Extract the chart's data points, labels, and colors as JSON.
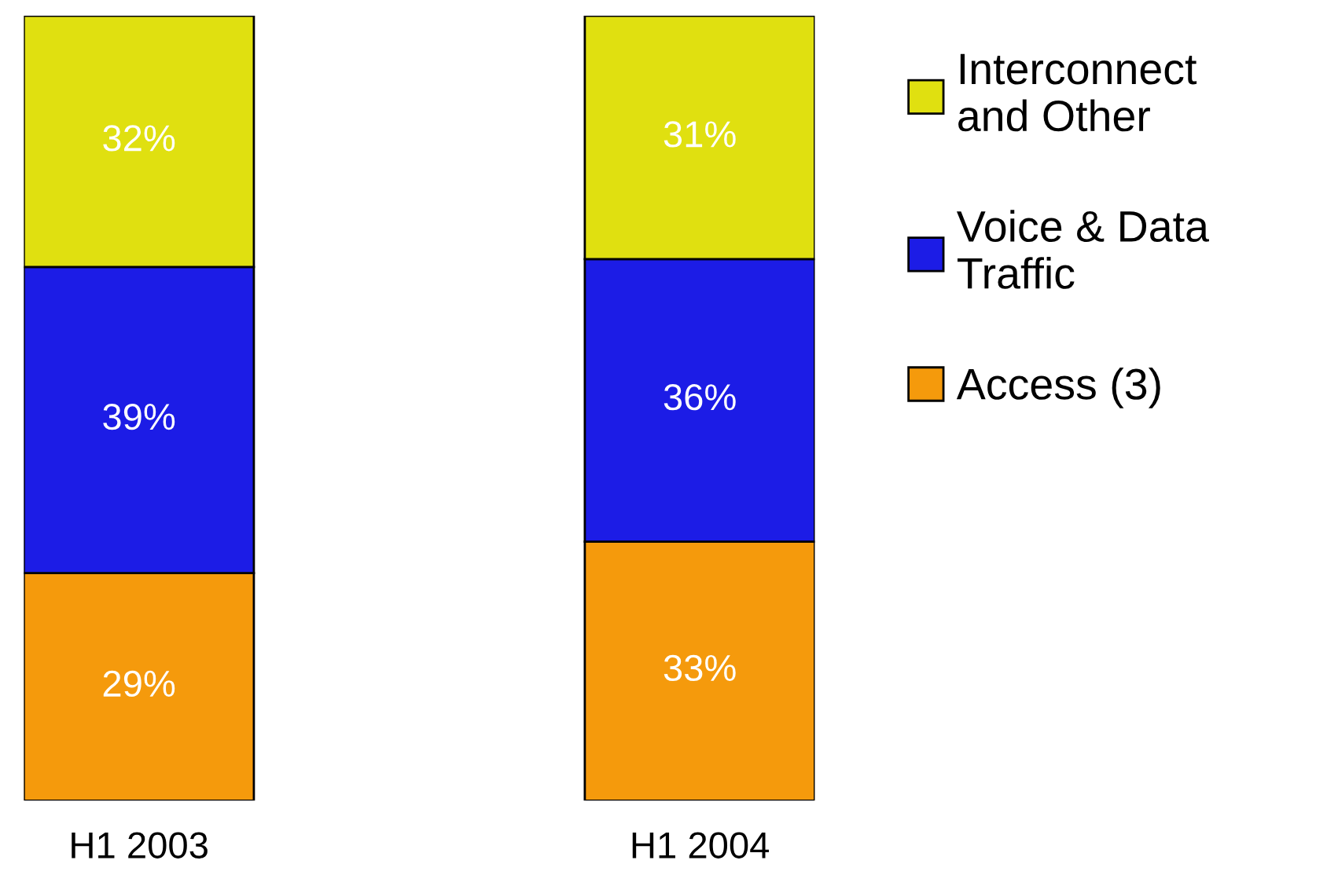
{
  "chart_data": {
    "type": "bar",
    "stacked": true,
    "categories": [
      "H1 2003",
      "H1 2004"
    ],
    "series": [
      {
        "name": "Access (3)",
        "color": "#f59a0c",
        "values": [
          29,
          33
        ],
        "value_labels": [
          "29%",
          "33%"
        ]
      },
      {
        "name": "Voice & Data\nTraffic",
        "color": "#1c1ce6",
        "values": [
          39,
          36
        ],
        "value_labels": [
          "39%",
          "36%"
        ]
      },
      {
        "name": "Interconnect\nand Other",
        "color": "#e0e010",
        "values": [
          32,
          31
        ],
        "value_labels": [
          "32%",
          "31%"
        ]
      }
    ],
    "tick_labels": "x",
    "legend": "right",
    "grid": false
  }
}
